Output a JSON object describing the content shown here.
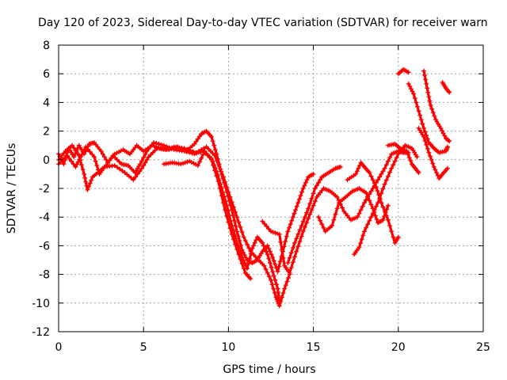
{
  "chart_data": {
    "type": "scatter",
    "title": "Day 120 of 2023, Sidereal Day-to-day VTEC variation (SDTVAR) for receiver warn",
    "xlabel": "GPS time / hours",
    "ylabel": "SDTVAR / TECUs",
    "xlim": [
      0,
      25
    ],
    "ylim": [
      -12,
      8
    ],
    "xticks": [
      0,
      5,
      10,
      15,
      20,
      25
    ],
    "yticks": [
      -12,
      -10,
      -8,
      -6,
      -4,
      -2,
      0,
      2,
      4,
      6,
      8
    ],
    "grid": true,
    "marker": "+",
    "color": "#ff0000",
    "series": [
      {
        "name": "s1",
        "points": [
          [
            0,
            0.4
          ],
          [
            0.3,
            -0.3
          ],
          [
            0.6,
            0.8
          ],
          [
            0.9,
            0.2
          ],
          [
            1.2,
            1.0
          ],
          [
            1.5,
            0.4
          ],
          [
            1.8,
            1.1
          ],
          [
            2.1,
            1.2
          ],
          [
            2.5,
            0.6
          ],
          [
            2.9,
            -0.2
          ],
          [
            3.3,
            0.4
          ],
          [
            3.8,
            0.7
          ],
          [
            4.2,
            0.4
          ],
          [
            4.6,
            1.0
          ],
          [
            5.0,
            0.6
          ],
          [
            5.5,
            1.0
          ],
          [
            6.0,
            0.8
          ],
          [
            6.5,
            0.7
          ],
          [
            7.0,
            0.9
          ],
          [
            7.5,
            0.6
          ],
          [
            8.0,
            1.1
          ],
          [
            8.4,
            1.8
          ],
          [
            8.7,
            2.0
          ],
          [
            9.0,
            1.6
          ],
          [
            9.3,
            0.4
          ],
          [
            9.6,
            -1.0
          ],
          [
            9.9,
            -2.2
          ],
          [
            10.2,
            -3.5
          ],
          [
            10.5,
            -5.0
          ],
          [
            10.8,
            -6.3
          ],
          [
            11.1,
            -7.0
          ],
          [
            11.4,
            -7.2
          ],
          [
            11.7,
            -7.0
          ],
          [
            12.0,
            -6.4
          ],
          [
            12.3,
            -6.0
          ],
          [
            12.6,
            -6.8
          ],
          [
            12.9,
            -7.8
          ],
          [
            13.2,
            -6.4
          ],
          [
            13.5,
            -5.0
          ],
          [
            13.8,
            -4.0
          ],
          [
            14.1,
            -3.0
          ],
          [
            14.4,
            -2.0
          ],
          [
            14.7,
            -1.2
          ],
          [
            15.0,
            -1.0
          ]
        ]
      },
      {
        "name": "s2",
        "points": [
          [
            0,
            0.0
          ],
          [
            0.4,
            0.6
          ],
          [
            0.8,
            1.0
          ],
          [
            1.2,
            0.3
          ],
          [
            1.5,
            -1.0
          ],
          [
            1.7,
            -2.1
          ],
          [
            2.0,
            -1.2
          ],
          [
            2.4,
            -0.8
          ],
          [
            2.8,
            -0.4
          ],
          [
            3.2,
            0.3
          ],
          [
            3.7,
            -0.3
          ],
          [
            4.1,
            -0.4
          ],
          [
            4.5,
            -0.9
          ],
          [
            4.8,
            -0.3
          ],
          [
            5.2,
            0.6
          ],
          [
            5.6,
            1.2
          ],
          [
            6.2,
            1.0
          ],
          [
            6.8,
            0.7
          ],
          [
            7.4,
            0.6
          ],
          [
            8.0,
            0.4
          ],
          [
            8.5,
            0.6
          ],
          [
            9.0,
            0.1
          ],
          [
            9.3,
            -0.8
          ],
          [
            9.6,
            -2.0
          ],
          [
            9.9,
            -3.2
          ],
          [
            10.2,
            -4.6
          ],
          [
            10.5,
            -5.8
          ],
          [
            10.8,
            -6.8
          ],
          [
            11.1,
            -7.6
          ],
          [
            11.4,
            -6.2
          ],
          [
            11.7,
            -5.4
          ],
          [
            12.0,
            -5.8
          ],
          [
            12.3,
            -6.6
          ],
          [
            12.6,
            -7.8
          ],
          [
            12.9,
            -9.0
          ],
          [
            13.0,
            -10.0
          ]
        ]
      },
      {
        "name": "s3",
        "points": [
          [
            0,
            -0.3
          ],
          [
            0.5,
            0.3
          ],
          [
            1.0,
            -0.5
          ],
          [
            1.3,
            0.2
          ],
          [
            1.6,
            0.9
          ],
          [
            2.1,
            0.2
          ],
          [
            2.4,
            -1.0
          ],
          [
            2.7,
            -0.5
          ],
          [
            3.3,
            -0.4
          ],
          [
            3.9,
            -0.9
          ],
          [
            4.4,
            -1.4
          ],
          [
            4.9,
            -0.6
          ],
          [
            5.3,
            0.2
          ],
          [
            5.8,
            0.8
          ],
          [
            6.3,
            0.7
          ],
          [
            6.8,
            0.9
          ],
          [
            7.4,
            0.8
          ],
          [
            8.1,
            0.5
          ],
          [
            8.7,
            0.9
          ],
          [
            9.2,
            0.3
          ],
          [
            9.7,
            -1.2
          ],
          [
            10.1,
            -2.6
          ],
          [
            10.5,
            -4.0
          ],
          [
            10.9,
            -5.4
          ],
          [
            11.3,
            -6.4
          ],
          [
            11.7,
            -6.9
          ],
          [
            12.1,
            -7.4
          ],
          [
            12.5,
            -8.4
          ],
          [
            12.8,
            -9.6
          ],
          [
            13.0,
            -10.2
          ],
          [
            13.3,
            -9.0
          ],
          [
            13.6,
            -8.0
          ]
        ]
      },
      {
        "name": "s4",
        "points": [
          [
            6.2,
            -0.3
          ],
          [
            6.7,
            -0.2
          ],
          [
            7.2,
            -0.3
          ],
          [
            7.7,
            -0.1
          ],
          [
            8.2,
            -0.4
          ],
          [
            8.6,
            0.6
          ],
          [
            9.0,
            0.0
          ],
          [
            9.4,
            -1.5
          ],
          [
            9.8,
            -3.5
          ],
          [
            10.2,
            -5.2
          ],
          [
            10.6,
            -6.6
          ],
          [
            11.0,
            -7.9
          ],
          [
            11.3,
            -8.3
          ]
        ]
      },
      {
        "name": "s5",
        "points": [
          [
            12.0,
            -4.3
          ],
          [
            12.5,
            -5.0
          ],
          [
            13.0,
            -5.2
          ],
          [
            13.3,
            -7.4
          ],
          [
            13.6,
            -7.9
          ],
          [
            14.0,
            -6.4
          ],
          [
            14.4,
            -5.0
          ],
          [
            14.8,
            -3.8
          ],
          [
            15.2,
            -2.6
          ],
          [
            15.6,
            -2.0
          ],
          [
            16.0,
            -2.2
          ],
          [
            16.4,
            -2.6
          ],
          [
            16.8,
            -3.6
          ],
          [
            17.2,
            -4.2
          ],
          [
            17.6,
            -4.0
          ],
          [
            18.0,
            -3.0
          ],
          [
            18.4,
            -2.2
          ],
          [
            18.8,
            -1.4
          ],
          [
            19.2,
            -0.6
          ],
          [
            19.6,
            0.4
          ],
          [
            20.0,
            0.6
          ],
          [
            20.3,
            0.5
          ],
          [
            20.6,
            0.5
          ]
        ]
      },
      {
        "name": "s6",
        "points": [
          [
            13.5,
            -7.2
          ],
          [
            13.9,
            -5.8
          ],
          [
            14.3,
            -4.6
          ],
          [
            14.7,
            -3.4
          ],
          [
            15.1,
            -2.0
          ],
          [
            15.5,
            -1.2
          ],
          [
            15.9,
            -0.9
          ],
          [
            16.3,
            -0.6
          ],
          [
            16.6,
            -0.5
          ]
        ]
      },
      {
        "name": "s7",
        "points": [
          [
            15.3,
            -4.0
          ],
          [
            15.7,
            -5.0
          ],
          [
            16.1,
            -4.6
          ],
          [
            16.5,
            -3.0
          ],
          [
            16.9,
            -2.6
          ],
          [
            17.3,
            -2.2
          ],
          [
            17.7,
            -2.0
          ],
          [
            18.1,
            -2.3
          ],
          [
            18.5,
            -3.4
          ],
          [
            18.8,
            -4.4
          ],
          [
            19.1,
            -4.2
          ],
          [
            19.4,
            -3.2
          ]
        ]
      },
      {
        "name": "s8",
        "points": [
          [
            17.0,
            -1.4
          ],
          [
            17.5,
            -1.0
          ],
          [
            17.8,
            -0.2
          ],
          [
            18.0,
            -0.5
          ],
          [
            18.3,
            -0.9
          ],
          [
            18.7,
            -1.9
          ],
          [
            19.0,
            -3.0
          ],
          [
            19.4,
            -4.2
          ],
          [
            19.8,
            -5.8
          ],
          [
            20.0,
            -5.4
          ]
        ]
      },
      {
        "name": "s9",
        "points": [
          [
            17.4,
            -6.6
          ],
          [
            17.7,
            -6.1
          ],
          [
            18.0,
            -5.0
          ],
          [
            18.4,
            -4.0
          ],
          [
            18.8,
            -3.0
          ],
          [
            19.2,
            -1.7
          ],
          [
            19.6,
            -0.6
          ],
          [
            20.0,
            0.4
          ],
          [
            20.4,
            1.0
          ],
          [
            20.8,
            0.8
          ],
          [
            21.1,
            0.2
          ]
        ]
      },
      {
        "name": "s10",
        "points": [
          [
            19.4,
            1.0
          ],
          [
            19.8,
            1.1
          ],
          [
            20.1,
            0.8
          ],
          [
            20.5,
            0.6
          ],
          [
            20.8,
            -0.3
          ],
          [
            21.0,
            -0.6
          ],
          [
            21.2,
            -0.9
          ]
        ]
      },
      {
        "name": "s11",
        "points": [
          [
            20.0,
            6.0
          ],
          [
            20.3,
            6.3
          ],
          [
            20.6,
            6.1
          ]
        ]
      },
      {
        "name": "s12",
        "points": [
          [
            20.6,
            5.3
          ],
          [
            20.9,
            4.6
          ],
          [
            21.2,
            3.4
          ],
          [
            21.5,
            2.2
          ],
          [
            21.8,
            1.2
          ],
          [
            22.1,
            0.8
          ],
          [
            22.4,
            0.5
          ],
          [
            22.8,
            0.6
          ],
          [
            22.9,
            0.9
          ]
        ]
      },
      {
        "name": "s13",
        "points": [
          [
            21.2,
            2.2
          ],
          [
            21.5,
            1.6
          ],
          [
            21.8,
            0.5
          ],
          [
            22.1,
            -0.5
          ],
          [
            22.4,
            -1.3
          ],
          [
            22.6,
            -1.0
          ],
          [
            22.9,
            -0.6
          ]
        ]
      },
      {
        "name": "s14",
        "points": [
          [
            21.5,
            6.2
          ],
          [
            21.7,
            5.0
          ],
          [
            21.9,
            3.8
          ],
          [
            22.2,
            2.8
          ],
          [
            22.5,
            2.2
          ],
          [
            22.8,
            1.5
          ],
          [
            23.0,
            1.3
          ]
        ]
      },
      {
        "name": "s15",
        "points": [
          [
            22.6,
            5.4
          ],
          [
            22.8,
            5.0
          ],
          [
            23.0,
            4.7
          ]
        ]
      }
    ]
  }
}
